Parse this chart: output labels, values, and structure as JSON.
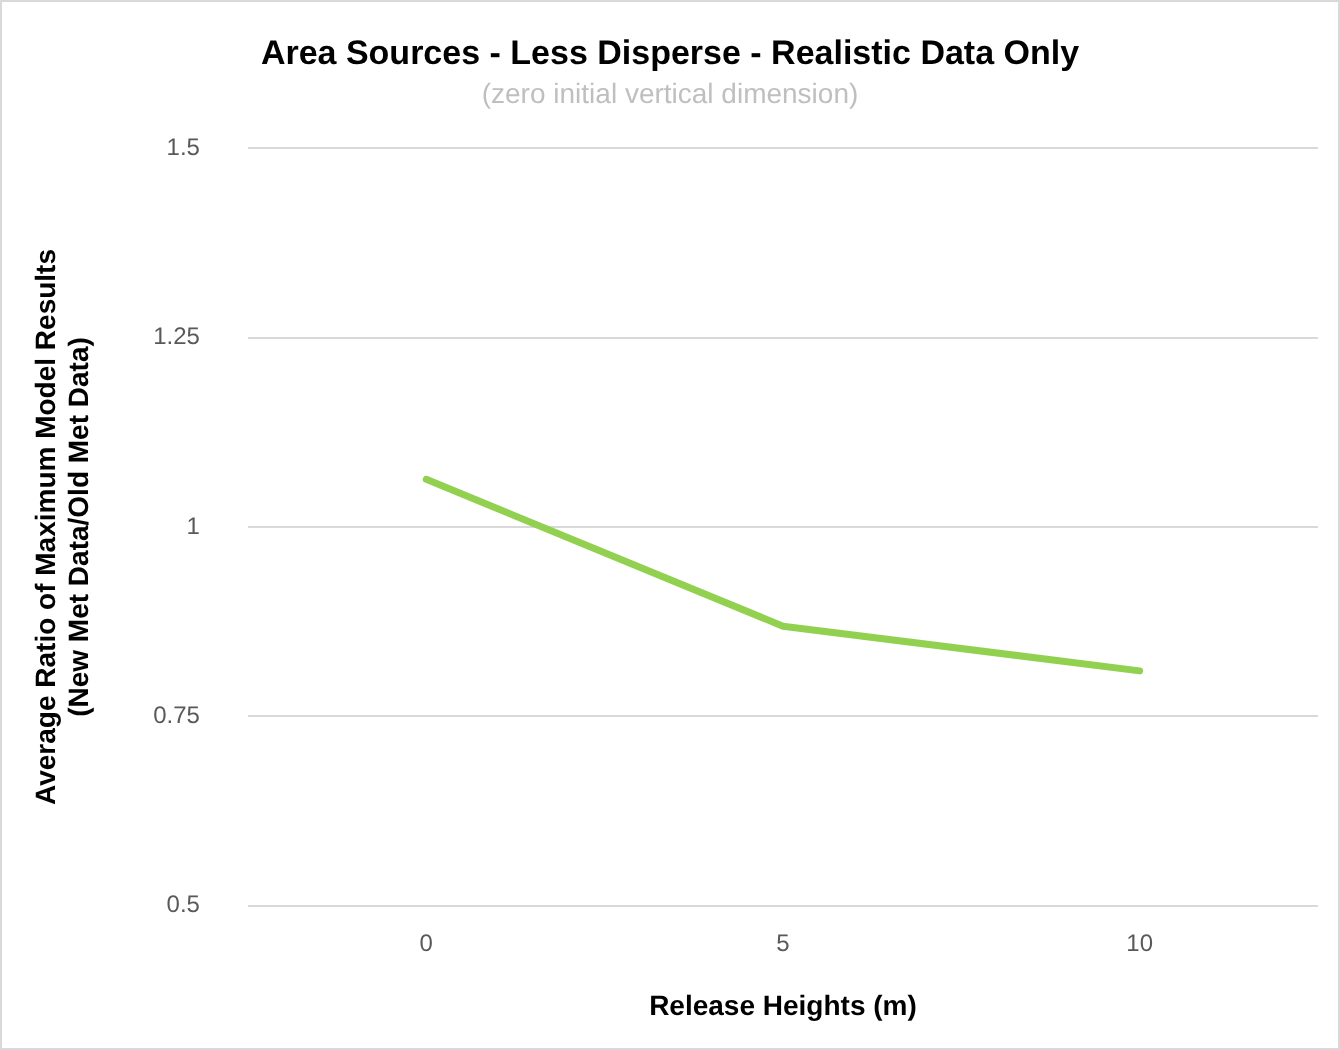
{
  "chart_data": {
    "type": "line",
    "title": "Area Sources - Less Disperse - Realistic Data Only",
    "subtitle": "(zero initial vertical dimension)",
    "xlabel": "Release Heights (m)",
    "ylabel": "Average Ratio of Maximum Model Results\n(New Met Data/Old Met Data)",
    "categories": [
      "0",
      "5",
      "10"
    ],
    "series": [
      {
        "color": "#92d050",
        "values": [
          1.063,
          0.869,
          0.81
        ]
      }
    ],
    "ylim": [
      0.5,
      1.5
    ],
    "yticks": [
      0.5,
      0.75,
      1,
      1.25,
      1.5
    ],
    "grid": "y",
    "legend": false,
    "marker": "none",
    "line_style": "solid"
  }
}
